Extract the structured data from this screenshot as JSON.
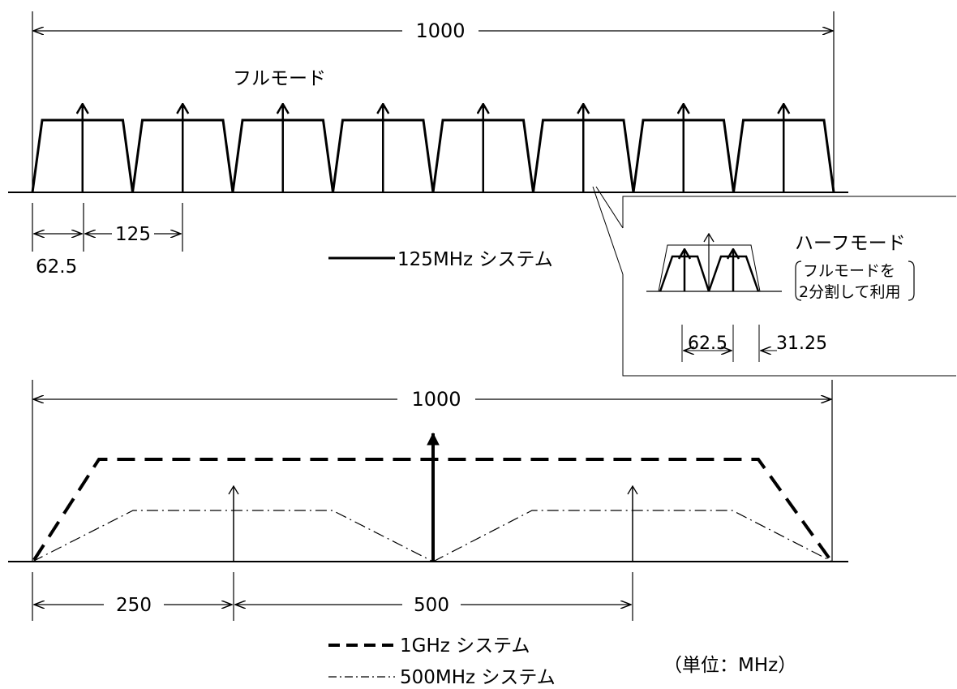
{
  "top": {
    "span_label": "1000",
    "mode_label": "フルモード",
    "dim_half_label": "62.5",
    "dim_spacing_label": "125",
    "legend_label": "125MHz システム"
  },
  "inset": {
    "title": "ハーフモード",
    "note_line1": "フルモードを",
    "note_line2": "2分割して利用",
    "dim_spacing_label": "62.5",
    "dim_edge_label": "31.25"
  },
  "bottom": {
    "span_label": "1000",
    "dim_left_label": "250",
    "dim_mid_label": "500",
    "legend_1ghz_label": "1GHz システム",
    "legend_500mhz_label": "500MHz システム",
    "unit_label": "（単位：MHz）"
  }
}
